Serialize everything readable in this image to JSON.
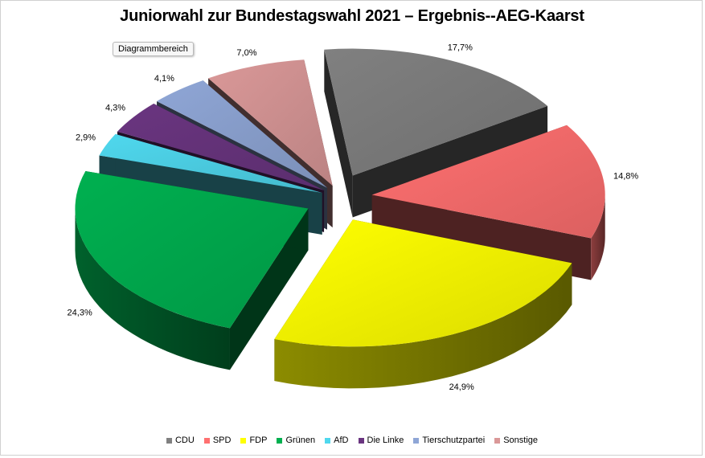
{
  "chart_area_tooltip": "Diagrammbereich",
  "chart_data": {
    "type": "pie",
    "title": "Juniorwahl zur Bundestagswahl 2021 – Ergebnis--AEG-Kaarst",
    "exploded": true,
    "three_d": true,
    "legend_position": "bottom",
    "categories": [
      "CDU",
      "SPD",
      "FDP",
      "Grünen",
      "AfD",
      "Die Linke",
      "Tierschutzpartei",
      "Sonstige"
    ],
    "values": [
      17.7,
      14.8,
      24.9,
      24.3,
      2.9,
      4.3,
      4.1,
      7.0
    ],
    "labels": [
      "17,7%",
      "14,8%",
      "24,9%",
      "24,3%",
      "2,9%",
      "4,3%",
      "4,1%",
      "7,0%"
    ],
    "colors": [
      "#808080",
      "#ff7070",
      "#ffff00",
      "#00b050",
      "#4fd8ee",
      "#6a3580",
      "#8fa6d6",
      "#da9898"
    ]
  }
}
